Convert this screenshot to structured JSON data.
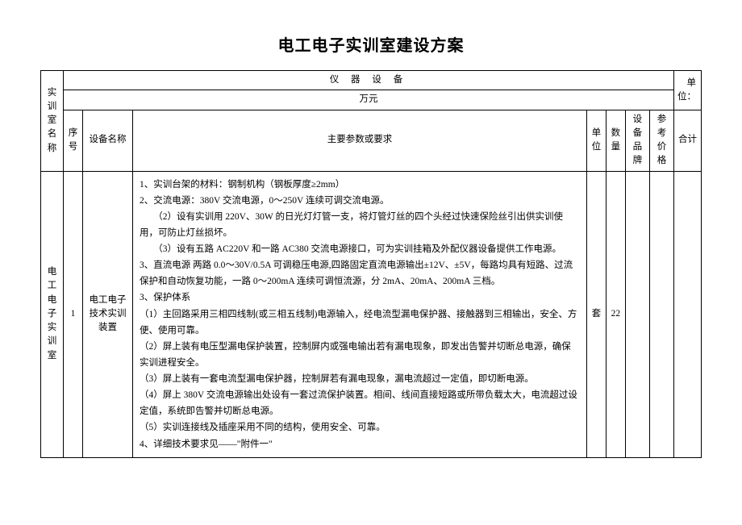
{
  "title": "电工电子实训室建设方案",
  "header": {
    "equipment_label": "仪 器 设 备",
    "unit_label_right": "单位：",
    "price_unit": "万元",
    "lab_name_header": "实训室名称",
    "seq": "序号",
    "equip_name": "设备名称",
    "spec": "主要参数或要求",
    "unit": "单位",
    "qty": "数量",
    "brand": "设备品牌",
    "ref_price": "参考价格",
    "total": "合计"
  },
  "row": {
    "lab_name": "电工电子实训室",
    "seq": "1",
    "equip_name": "电工电子技术实训装置",
    "spec_lines": [
      "1、实训台架的材料：钢制机构（钢板厚度≥2mm）",
      "2、交流电源：380V 交流电源，0～250V 连续可调交流电源。",
      "　　（2）设有实训用 220V、30W 的日光灯灯管一支，将灯管灯丝的四个头经过快速保险丝引出供实训使用，可防止灯丝损坏。",
      "　　（3）设有五路 AC220V 和一路 AC380 交流电源接口，可为实训挂箱及外配仪器设备提供工作电源。",
      "3、直流电源 两路 0.0～30V/0.5A 可调稳压电源,四路固定直流电源输出±12V、±5V，每路均具有短路、过流保护和自动恢复功能，一路 0～200mA 连续可调恒流源，分 2mA、20mA、200mA 三档。",
      "3、保护体系",
      "（1）主回路采用三相四线制(或三相五线制)电源输入，经电流型漏电保护器、接触器到三相输出，安全、方便、使用可靠。",
      "（2）屏上装有电压型漏电保护装置，控制屏内或强电输出若有漏电现象，即发出告警并切断总电源，确保实训进程安全。",
      "（3）屏上装有一套电流型漏电保护器，控制屏若有漏电现象，漏电流超过一定值，即切断电源。",
      "（4）屏上 380V 交流电源输出处设有一套过流保护装置。相间、线间直接短路或所带负载太大，电流超过设定值，系统即告警并切断总电源。",
      "（5）实训连接线及插座采用不同的结构，使用安全、可靠。",
      "4、详细技术要求见——\"附件一\""
    ],
    "unit": "套",
    "qty": "22",
    "brand": "",
    "ref_price": "",
    "total": ""
  },
  "style": {
    "border_color": "#000000",
    "background": "#ffffff",
    "text_color": "#000000",
    "title_fontsize": 20,
    "body_fontsize": 12,
    "cell_fontsize": 11.5,
    "line_height": 1.75
  }
}
